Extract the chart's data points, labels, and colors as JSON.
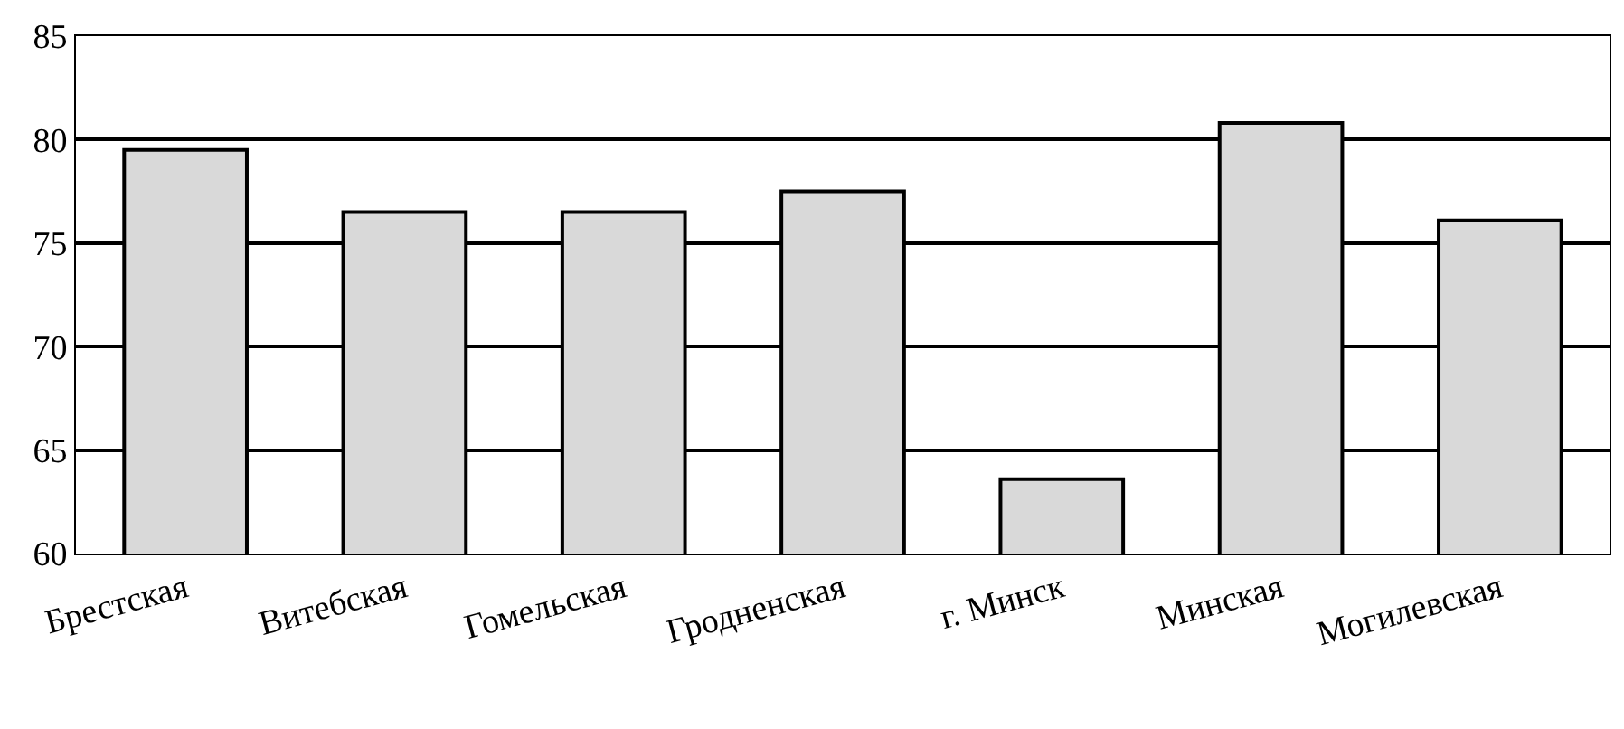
{
  "chart_data": {
    "type": "bar",
    "categories": [
      "Брестская",
      "Витебская",
      "Гомельская",
      "Гродненская",
      "г. Минск",
      "Минская",
      "Могилевская"
    ],
    "values": [
      79.5,
      76.5,
      76.5,
      77.5,
      63.6,
      80.8,
      76.1
    ],
    "color": "#d9d9d9",
    "ylim": [
      60,
      85
    ],
    "yticks": [
      60,
      65,
      70,
      75,
      80,
      85
    ],
    "grid": "y",
    "legend": false
  }
}
